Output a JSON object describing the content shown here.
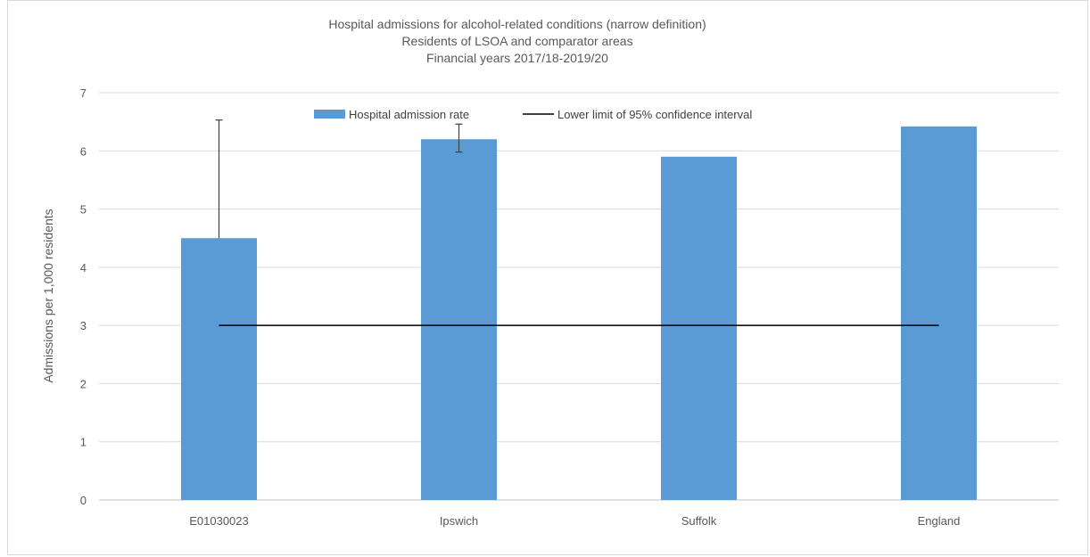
{
  "chart_data": {
    "type": "bar",
    "title": [
      "Hospital admissions for alcohol-related conditions (narrow definition)",
      "Residents of LSOA and comparator areas",
      "Financial years 2017/18-2019/20"
    ],
    "xlabel": "",
    "ylabel": "Admissions per 1,000 residents",
    "ylim": [
      0,
      7
    ],
    "yticks": [
      "0",
      "1",
      "2",
      "3",
      "4",
      "5",
      "6",
      "7"
    ],
    "categories": [
      "E01030023",
      "Ipswich",
      "Suffolk",
      "England"
    ],
    "series": [
      {
        "name": "Hospital admission rate",
        "type": "bar",
        "color": "#5b9bd5",
        "values": [
          4.5,
          6.2,
          5.9,
          6.42
        ],
        "error_high": [
          6.53,
          6.46,
          null,
          null
        ],
        "error_low": [
          null,
          5.98,
          null,
          null
        ]
      },
      {
        "name": "Lower limit of 95% confidence interval",
        "type": "line",
        "color": "#000000",
        "values": [
          3.0,
          3.0,
          3.0,
          3.0
        ]
      }
    ],
    "grid": true,
    "legend_position": "top"
  }
}
